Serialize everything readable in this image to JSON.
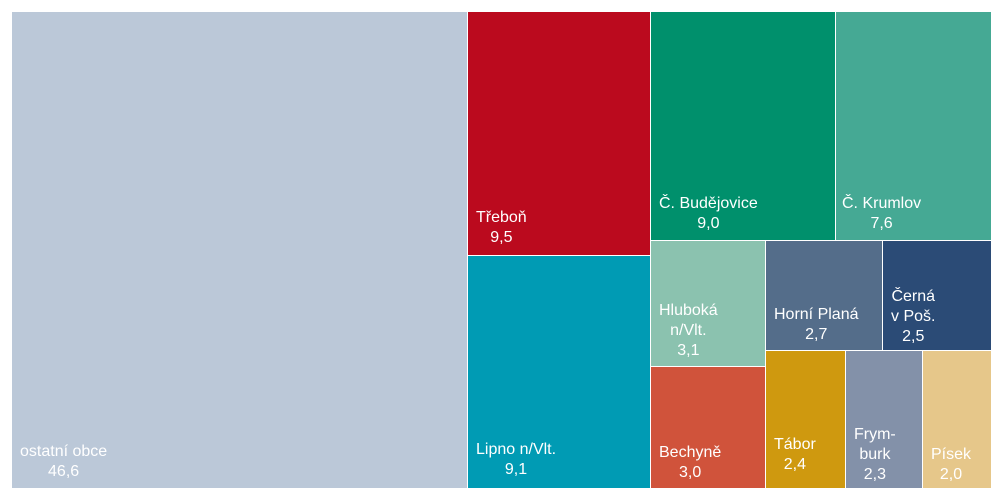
{
  "chart_data": {
    "type": "treemap",
    "title": "",
    "items": [
      {
        "name": "ostatní obce",
        "label": "46,6",
        "value": 46.6,
        "color": "#bbc8d8"
      },
      {
        "name": "Třeboň",
        "label": "9,5",
        "value": 9.5,
        "color": "#bb0a1e"
      },
      {
        "name": "Lipno n/Vlt.",
        "label": "9,1",
        "value": 9.1,
        "color": "#009bb4"
      },
      {
        "name": "Č. Budějovice",
        "label": "9,0",
        "value": 9.0,
        "color": "#00906c"
      },
      {
        "name": "Č. Krumlov",
        "label": "7,6",
        "value": 7.6,
        "color": "#45a994"
      },
      {
        "name": "Hluboká\nn/Vlt.",
        "label": "3,1",
        "value": 3.1,
        "color": "#8bc2af"
      },
      {
        "name": "Bechyně",
        "label": "3,0",
        "value": 3.0,
        "color": "#d0533b"
      },
      {
        "name": "Horní Planá",
        "label": "2,7",
        "value": 2.7,
        "color": "#546d8a"
      },
      {
        "name": "Černá\nv Poš.",
        "label": "2,5",
        "value": 2.5,
        "color": "#2b4b76"
      },
      {
        "name": "Tábor",
        "label": "2,4",
        "value": 2.4,
        "color": "#cf990f"
      },
      {
        "name": "Frym-\nburk",
        "label": "2,3",
        "value": 2.3,
        "color": "#8391a9"
      },
      {
        "name": "Písek",
        "label": "2,0",
        "value": 2.0,
        "color": "#e6c78a"
      }
    ]
  }
}
